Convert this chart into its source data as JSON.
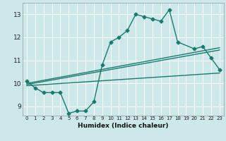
{
  "xlabel": "Humidex (Indice chaleur)",
  "bg_color": "#cce8e8",
  "grid_color": "#ffffff",
  "line_color": "#1a7a6e",
  "xlim": [
    -0.5,
    23.5
  ],
  "ylim": [
    8.6,
    13.5
  ],
  "xticks": [
    0,
    1,
    2,
    3,
    4,
    5,
    6,
    7,
    8,
    9,
    10,
    11,
    12,
    13,
    14,
    15,
    16,
    17,
    18,
    19,
    20,
    21,
    22,
    23
  ],
  "yticks": [
    9,
    10,
    11,
    12,
    13
  ],
  "line1_x": [
    0,
    1,
    2,
    3,
    4,
    5,
    6,
    7,
    8,
    9,
    10,
    11,
    12,
    13,
    14,
    15,
    16,
    17,
    18,
    20,
    21,
    22,
    23
  ],
  "line1_y": [
    10.1,
    9.8,
    9.6,
    9.6,
    9.6,
    8.7,
    8.8,
    8.8,
    9.2,
    10.8,
    11.8,
    12.0,
    12.3,
    13.0,
    12.9,
    12.8,
    12.7,
    13.2,
    11.8,
    11.5,
    11.6,
    11.1,
    10.6
  ],
  "line2_x": [
    0,
    23
  ],
  "line2_y": [
    10.0,
    11.55
  ],
  "line3_x": [
    0,
    23
  ],
  "line3_y": [
    9.9,
    10.45
  ],
  "line4_x": [
    0,
    23
  ],
  "line4_y": [
    9.95,
    11.45
  ]
}
